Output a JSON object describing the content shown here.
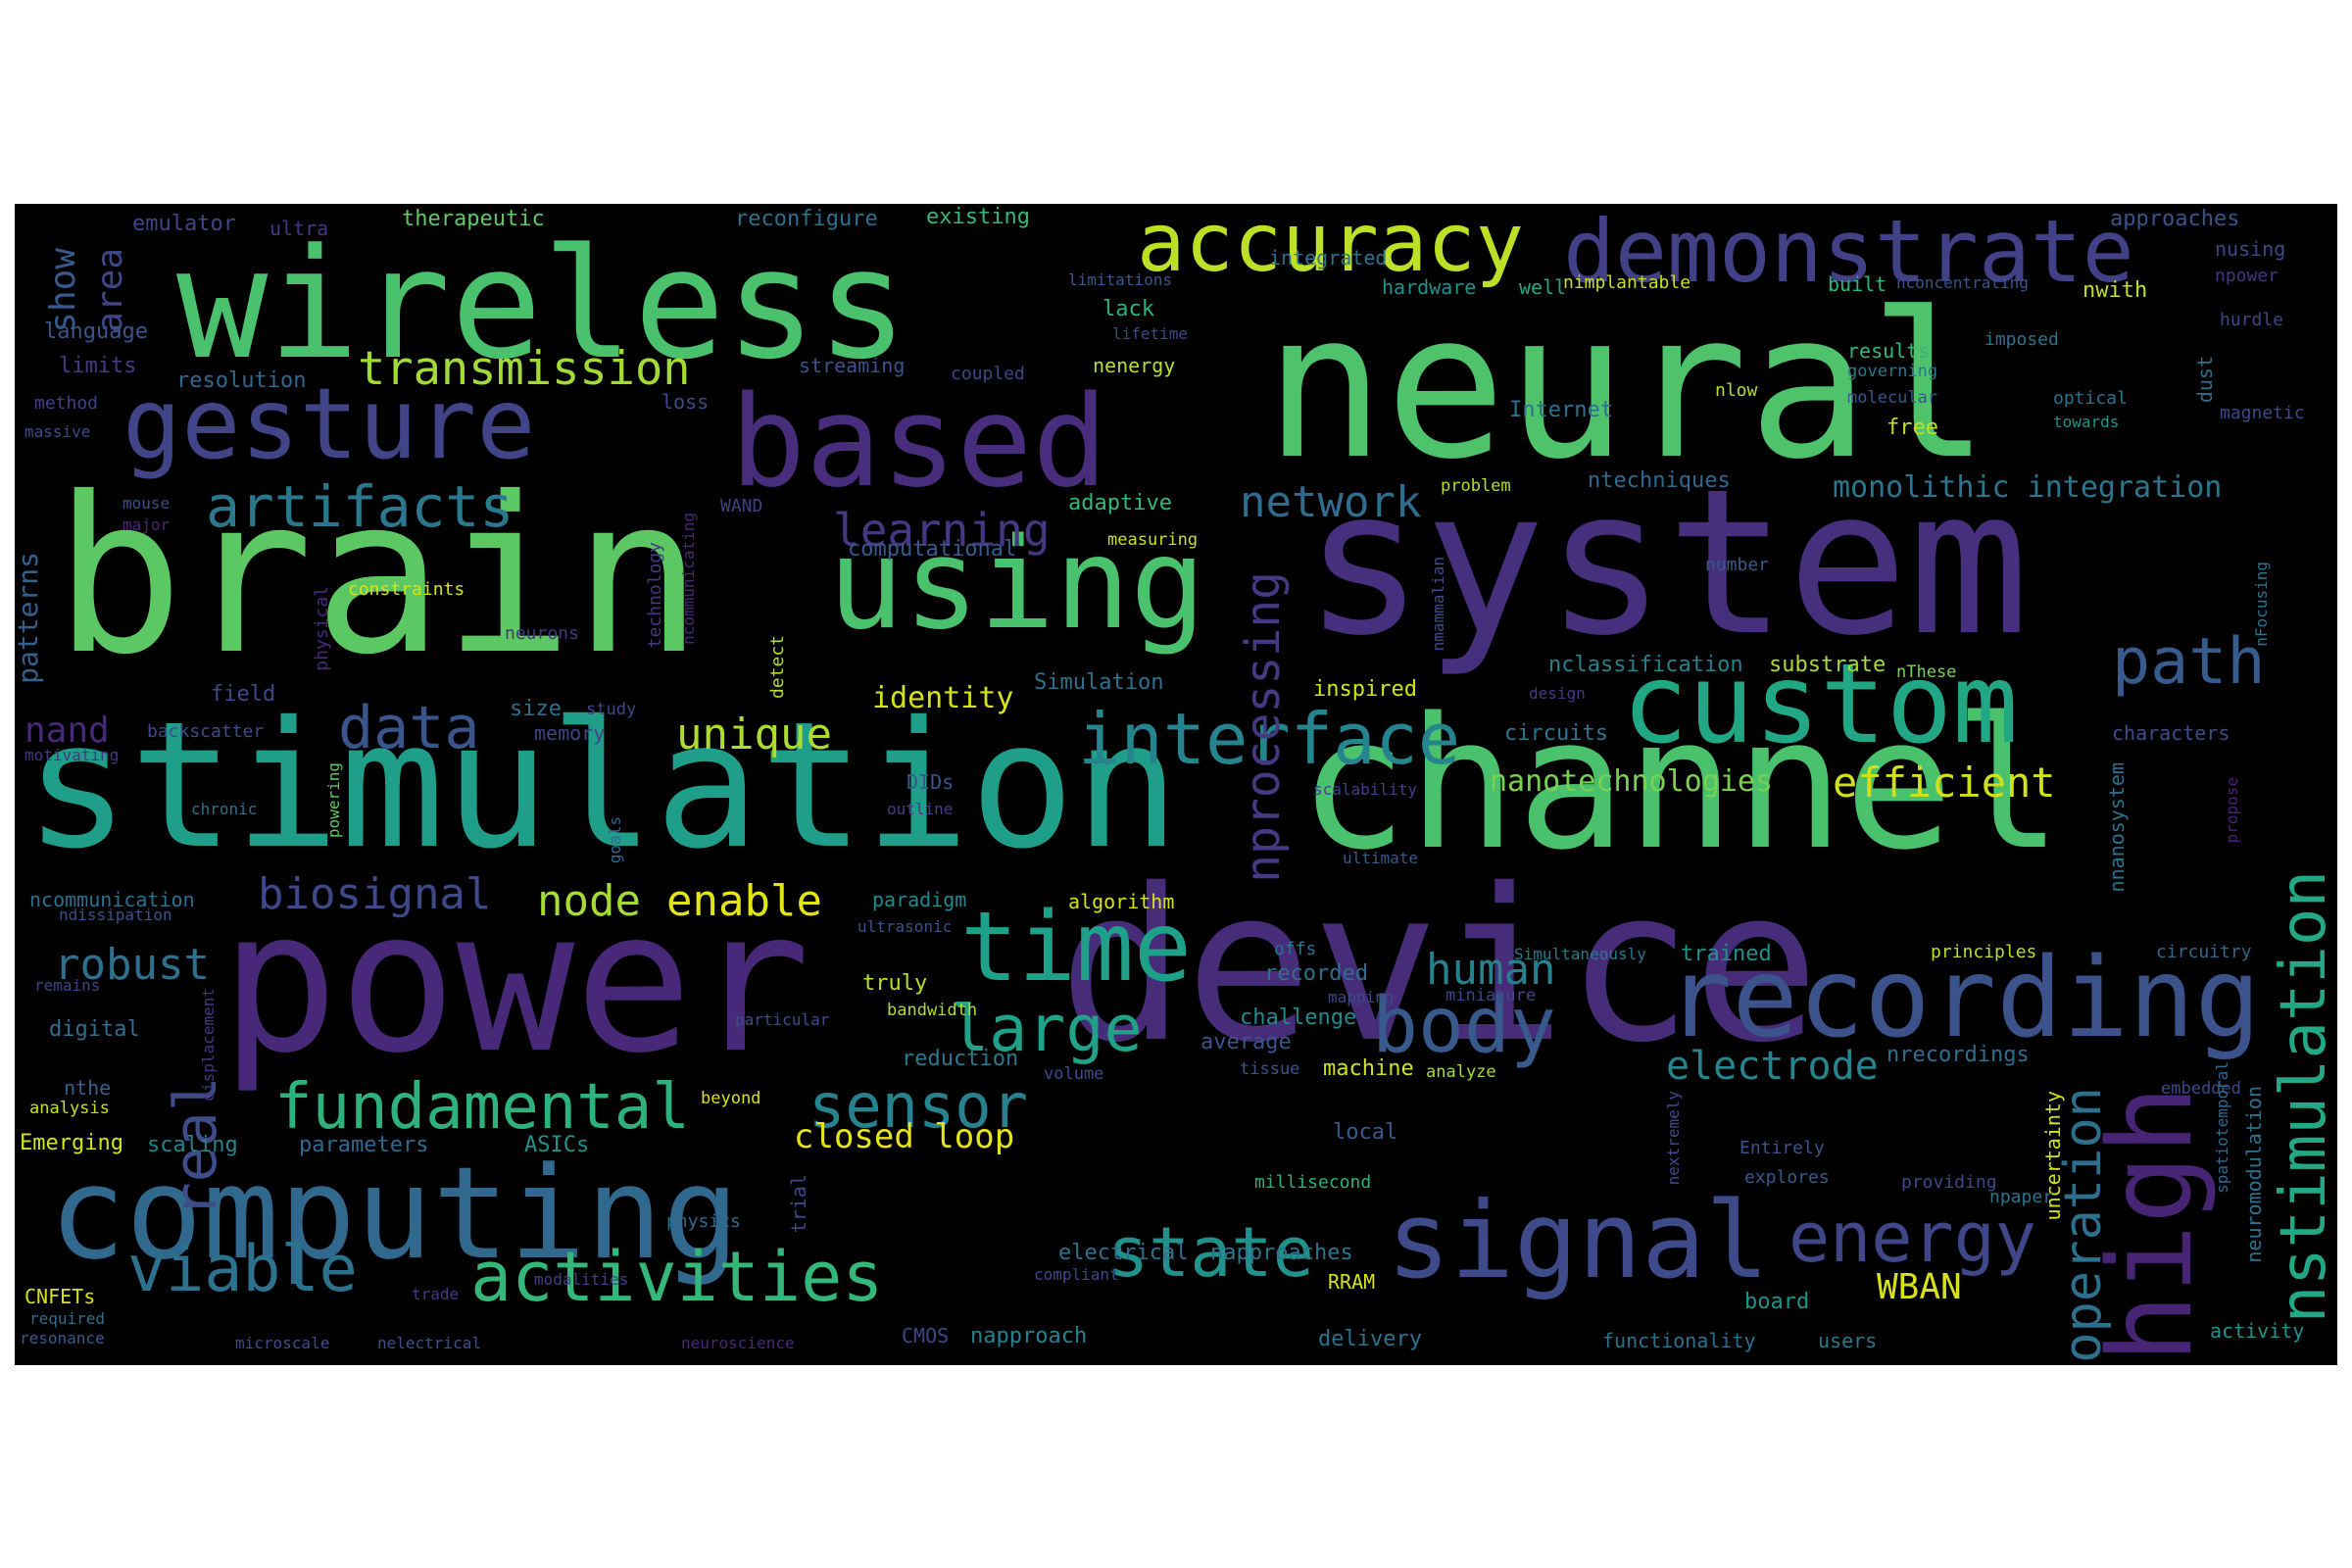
{
  "cloud": {
    "background": "#000000",
    "words": [
      {
        "text": "neural",
        "color": "#4ec36b"
      },
      {
        "text": "system",
        "color": "#462f7c"
      },
      {
        "text": "brain",
        "color": "#5cc863"
      },
      {
        "text": "device",
        "color": "#472c7a"
      },
      {
        "text": "channel",
        "color": "#4ac16d"
      },
      {
        "text": "power",
        "color": "#482878"
      },
      {
        "text": "stimulation",
        "color": "#1f9e89"
      },
      {
        "text": "wireless",
        "color": "#4ac16d"
      },
      {
        "text": "computing",
        "color": "#31688e"
      },
      {
        "text": "using",
        "color": "#4ac16d"
      },
      {
        "text": "based",
        "color": "#472d7b"
      },
      {
        "text": "custom",
        "color": "#22a785"
      },
      {
        "text": "recording",
        "color": "#3b528b"
      },
      {
        "text": "signal",
        "color": "#3e4a89"
      },
      {
        "text": "high",
        "color": "#482475"
      },
      {
        "text": "gesture",
        "color": "#414487"
      },
      {
        "text": "demonstrate",
        "color": "#424086"
      },
      {
        "text": "accuracy",
        "color": "#bddf26"
      },
      {
        "text": "time",
        "color": "#1fa088"
      },
      {
        "text": "interface",
        "color": "#25848e"
      },
      {
        "text": "body",
        "color": "#38598c"
      },
      {
        "text": "energy",
        "color": "#3f4788"
      },
      {
        "text": "nstimulation",
        "color": "#22a884"
      },
      {
        "text": "activities",
        "color": "#35b779"
      },
      {
        "text": "state",
        "color": "#21918c"
      },
      {
        "text": "viable",
        "color": "#2c728e"
      },
      {
        "text": "fundamental",
        "color": "#2db27d"
      },
      {
        "text": "data",
        "color": "#3a548c"
      },
      {
        "text": "path",
        "color": "#375b8d"
      },
      {
        "text": "sensor",
        "color": "#26828e"
      },
      {
        "text": "large",
        "color": "#1fa287"
      },
      {
        "text": "artifacts",
        "color": "#2a788e"
      },
      {
        "text": "real",
        "color": "#3e4c8a"
      },
      {
        "text": "operation",
        "color": "#2d708e"
      },
      {
        "text": "nprocessing",
        "color": "#443983"
      },
      {
        "text": "transmission",
        "color": "#a2da37"
      },
      {
        "text": "network",
        "color": "#2f6c8e"
      },
      {
        "text": "learning",
        "color": "#453882"
      },
      {
        "text": "unique",
        "color": "#addc30"
      },
      {
        "text": "biosignal",
        "color": "#3f4889"
      },
      {
        "text": "enable",
        "color": "#e2e418"
      },
      {
        "text": "node",
        "color": "#a5db36"
      },
      {
        "text": "robust",
        "color": "#2d718e"
      },
      {
        "text": "human",
        "color": "#27808e"
      },
      {
        "text": "efficient",
        "color": "#d0e11c"
      },
      {
        "text": "electrode",
        "color": "#25858e"
      },
      {
        "text": "monolithic integration",
        "color": "#2a768e"
      },
      {
        "text": "nanotechnologies",
        "color": "#7ad151"
      },
      {
        "text": "identity",
        "color": "#d5e21a"
      },
      {
        "text": "closed loop",
        "color": "#e5e419"
      },
      {
        "text": "WBAN",
        "color": "#d8e219"
      },
      {
        "text": "show",
        "color": "#38598c"
      },
      {
        "text": "area",
        "color": "#404588"
      },
      {
        "text": "nand",
        "color": "#482878"
      },
      {
        "text": "patterns",
        "color": "#34618d"
      },
      {
        "text": "emulator",
        "color": "#414487"
      },
      {
        "text": "ultra",
        "color": "#453781"
      },
      {
        "text": "therapeutic",
        "color": "#5ec962"
      },
      {
        "text": "reconfigure",
        "color": "#2d708e"
      },
      {
        "text": "existing",
        "color": "#35b779"
      },
      {
        "text": "approaches",
        "color": "#3b528b"
      },
      {
        "text": "nusing",
        "color": "#404688"
      },
      {
        "text": "npower",
        "color": "#453882"
      },
      {
        "text": "language",
        "color": "#3a548c"
      },
      {
        "text": "limits",
        "color": "#443983"
      },
      {
        "text": "resolution",
        "color": "#31688e"
      },
      {
        "text": "method",
        "color": "#424086"
      },
      {
        "text": "massive",
        "color": "#3e4a89"
      },
      {
        "text": "mouse",
        "color": "#3b518b"
      },
      {
        "text": "major",
        "color": "#482576"
      },
      {
        "text": "hardware",
        "color": "#21918c"
      },
      {
        "text": "integrated",
        "color": "#2c738e"
      },
      {
        "text": "limitations",
        "color": "#38598c"
      },
      {
        "text": "lack",
        "color": "#2db27d"
      },
      {
        "text": "nenergy",
        "color": "#b5de2b"
      },
      {
        "text": "streaming",
        "color": "#3b528b"
      },
      {
        "text": "coupled",
        "color": "#414487"
      },
      {
        "text": "loss",
        "color": "#3e4a89"
      },
      {
        "text": "well",
        "color": "#22a785"
      },
      {
        "text": "nimplantable",
        "color": "#c8e020"
      },
      {
        "text": "built",
        "color": "#31b57b"
      },
      {
        "text": "nconcentrating",
        "color": "#3a548c"
      },
      {
        "text": "nwith",
        "color": "#c2df23"
      },
      {
        "text": "imposed",
        "color": "#2c738e"
      },
      {
        "text": "hurdle",
        "color": "#404588"
      },
      {
        "text": "results",
        "color": "#35b779"
      },
      {
        "text": "governing",
        "color": "#2a788e"
      },
      {
        "text": "molecular",
        "color": "#39568c"
      },
      {
        "text": "dust",
        "color": "#2d708e"
      },
      {
        "text": "optical",
        "color": "#2c728e"
      },
      {
        "text": "towards",
        "color": "#20928c"
      },
      {
        "text": "magnetic",
        "color": "#3e4989"
      },
      {
        "text": "free",
        "color": "#c0df25"
      },
      {
        "text": "nlow",
        "color": "#b8de29"
      },
      {
        "text": "Internet",
        "color": "#2e6f8e"
      },
      {
        "text": "ntechniques",
        "color": "#31688e"
      },
      {
        "text": "problem",
        "color": "#b2dd2d"
      },
      {
        "text": "adaptive",
        "color": "#35b779"
      },
      {
        "text": "computational",
        "color": "#38598c"
      },
      {
        "text": "measuring",
        "color": "#c8e020"
      },
      {
        "text": "WAND",
        "color": "#424186"
      },
      {
        "text": "technology",
        "color": "#443a83"
      },
      {
        "text": "ncommunicating",
        "color": "#482878"
      },
      {
        "text": "physical",
        "color": "#472c7a"
      },
      {
        "text": "constraints",
        "color": "#d5e21a"
      },
      {
        "text": "neurons",
        "color": "#453781"
      },
      {
        "text": "nmammalian",
        "color": "#3e4c8a"
      },
      {
        "text": "number",
        "color": "#38598c"
      },
      {
        "text": "nFocusing",
        "color": "#2c738e"
      },
      {
        "text": "nclassification",
        "color": "#27808e"
      },
      {
        "text": "substrate",
        "color": "#a8db34"
      },
      {
        "text": "nThese",
        "color": "#7ad151"
      },
      {
        "text": "design",
        "color": "#443983"
      },
      {
        "text": "characters",
        "color": "#3e4c8a"
      },
      {
        "text": "circuits",
        "color": "#2b758e"
      },
      {
        "text": "inspired",
        "color": "#d2e21b"
      },
      {
        "text": "Simulation",
        "color": "#2c728e"
      },
      {
        "text": "field",
        "color": "#3f4788"
      },
      {
        "text": "size",
        "color": "#2e6e8e"
      },
      {
        "text": "study",
        "color": "#404588"
      },
      {
        "text": "memory",
        "color": "#414287"
      },
      {
        "text": "backscatter",
        "color": "#3e4c8a"
      },
      {
        "text": "motivating",
        "color": "#443983"
      },
      {
        "text": "detect",
        "color": "#b5de2b"
      },
      {
        "text": "DIDs",
        "color": "#3a548c"
      },
      {
        "text": "chronic",
        "color": "#2e6f8e"
      },
      {
        "text": "outline",
        "color": "#433e85"
      },
      {
        "text": "powering",
        "color": "#5ec962"
      },
      {
        "text": "goals",
        "color": "#31688e"
      },
      {
        "text": "scalability",
        "color": "#424086"
      },
      {
        "text": "ultimate",
        "color": "#38598c"
      },
      {
        "text": "propose",
        "color": "#482173"
      },
      {
        "text": "nnanosystem",
        "color": "#2c728e"
      },
      {
        "text": "ncommunication",
        "color": "#2d708e"
      },
      {
        "text": "ndissipation",
        "color": "#3b528b"
      },
      {
        "text": "paradigm",
        "color": "#23898e"
      },
      {
        "text": "algorithm",
        "color": "#d8e219"
      },
      {
        "text": "ultrasonic",
        "color": "#3b518b"
      },
      {
        "text": "remains",
        "color": "#414487"
      },
      {
        "text": "offs",
        "color": "#2c738e"
      },
      {
        "text": "recorded",
        "color": "#2d708e"
      },
      {
        "text": "mapping",
        "color": "#3e4989"
      },
      {
        "text": "Simultaneously",
        "color": "#2a788e"
      },
      {
        "text": "trained",
        "color": "#21918c"
      },
      {
        "text": "principles",
        "color": "#b8de29"
      },
      {
        "text": "circuitry",
        "color": "#31688e"
      },
      {
        "text": "digital",
        "color": "#2e6e8e"
      },
      {
        "text": "displacement",
        "color": "#453882"
      },
      {
        "text": "truly",
        "color": "#bddf26"
      },
      {
        "text": "bandwidth",
        "color": "#b2dd2d"
      },
      {
        "text": "particular",
        "color": "#3e4a89"
      },
      {
        "text": "challenge",
        "color": "#23898e"
      },
      {
        "text": "average",
        "color": "#3a548c"
      },
      {
        "text": "miniature",
        "color": "#3f4788"
      },
      {
        "text": "tissue",
        "color": "#39568c"
      },
      {
        "text": "machine",
        "color": "#d0e11c"
      },
      {
        "text": "analyze",
        "color": "#a5db36"
      },
      {
        "text": "nrecordings",
        "color": "#2e6e8e"
      },
      {
        "text": "embedded",
        "color": "#3e4a89"
      },
      {
        "text": "spatiotemporal",
        "color": "#31688e"
      },
      {
        "text": "neuromodulation",
        "color": "#2c728e"
      },
      {
        "text": "nthe",
        "color": "#34618d"
      },
      {
        "text": "analysis",
        "color": "#c8e020"
      },
      {
        "text": "beyond",
        "color": "#d8e219"
      },
      {
        "text": "reduction",
        "color": "#2a788e"
      },
      {
        "text": "volume",
        "color": "#3e4a89"
      },
      {
        "text": "Emerging",
        "color": "#d2e21b"
      },
      {
        "text": "scaling",
        "color": "#26828e"
      },
      {
        "text": "parameters",
        "color": "#31688e"
      },
      {
        "text": "ASICs",
        "color": "#21918c"
      },
      {
        "text": "millisecond",
        "color": "#2db27d"
      },
      {
        "text": "nextremely",
        "color": "#3e4a89"
      },
      {
        "text": "Entirely",
        "color": "#3b528b"
      },
      {
        "text": "uncertainty",
        "color": "#d5e21a"
      },
      {
        "text": "explores",
        "color": "#38598c"
      },
      {
        "text": "providing",
        "color": "#3e4989"
      },
      {
        "text": "npaper",
        "color": "#2c738e"
      },
      {
        "text": "trial",
        "color": "#404588"
      },
      {
        "text": "physics",
        "color": "#31688e"
      },
      {
        "text": "electrical",
        "color": "#2d718e"
      },
      {
        "text": "napproaches",
        "color": "#2b758e"
      },
      {
        "text": "compliant",
        "color": "#3f4788"
      },
      {
        "text": "RRAM",
        "color": "#d2e21b"
      },
      {
        "text": "board",
        "color": "#21918c"
      },
      {
        "text": "CNFETs",
        "color": "#d5e21a"
      },
      {
        "text": "required",
        "color": "#2e6e8e"
      },
      {
        "text": "resonance",
        "color": "#38598c"
      },
      {
        "text": "trade",
        "color": "#443983"
      },
      {
        "text": "microscale",
        "color": "#3e4c8a"
      },
      {
        "text": "nelectrical",
        "color": "#3b518b"
      },
      {
        "text": "modalities",
        "color": "#433e85"
      },
      {
        "text": "CMOS",
        "color": "#404588"
      },
      {
        "text": "napproach",
        "color": "#26828e"
      },
      {
        "text": "neuroscience",
        "color": "#482878"
      },
      {
        "text": "delivery",
        "color": "#2c728e"
      },
      {
        "text": "functionality",
        "color": "#2d708e"
      },
      {
        "text": "users",
        "color": "#2a788e"
      },
      {
        "text": "activity",
        "color": "#20928c"
      },
      {
        "text": "local",
        "color": "#38598c"
      },
      {
        "text": "lifetime",
        "color": "#3f4788"
      }
    ]
  }
}
